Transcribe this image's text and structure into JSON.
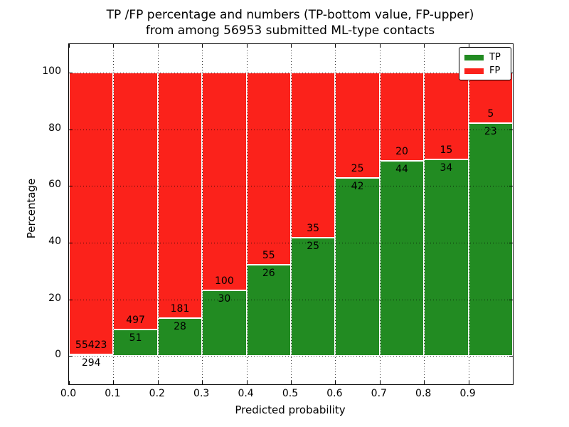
{
  "title": {
    "line1": "TP /FP percentage and numbers (TP-bottom value, FP-upper)",
    "line2": "from among 56953 submitted ML-type contacts"
  },
  "chart_data": {
    "type": "bar",
    "stacked": true,
    "title": "TP /FP percentage and numbers (TP-bottom value, FP-upper) from among 56953 submitted ML-type contacts",
    "xlabel": "Predicted probability",
    "ylabel": "Percentage",
    "total_contacts": 56953,
    "bins": [
      "0.0-0.1",
      "0.1-0.2",
      "0.2-0.3",
      "0.3-0.4",
      "0.4-0.5",
      "0.5-0.6",
      "0.6-0.7",
      "0.7-0.8",
      "0.8-0.9",
      "0.9-1.0"
    ],
    "series": [
      {
        "name": "TP",
        "color": "#228b22",
        "counts": [
          294,
          51,
          28,
          30,
          26,
          25,
          42,
          44,
          34,
          23
        ]
      },
      {
        "name": "FP",
        "color": "#fb221b",
        "counts": [
          55423,
          497,
          181,
          100,
          55,
          35,
          25,
          20,
          15,
          5
        ]
      }
    ],
    "tp_percent": [
      0.53,
      9.31,
      13.4,
      23.08,
      32.1,
      41.67,
      62.69,
      68.75,
      69.39,
      82.14
    ],
    "x_ticks": [
      "0.0",
      "0.1",
      "0.2",
      "0.3",
      "0.4",
      "0.5",
      "0.6",
      "0.7",
      "0.8",
      "0.9"
    ],
    "y_ticks": [
      0,
      20,
      40,
      60,
      80,
      100
    ],
    "xlim": [
      0.0,
      1.0
    ],
    "ylim": [
      -10,
      110
    ],
    "grid": true,
    "grid_style": "dotted",
    "grid_above_bars": true,
    "legend": {
      "position": "upper right",
      "entries": [
        {
          "label": "TP",
          "color": "#228b22"
        },
        {
          "label": "FP",
          "color": "#fb221b"
        }
      ]
    }
  }
}
